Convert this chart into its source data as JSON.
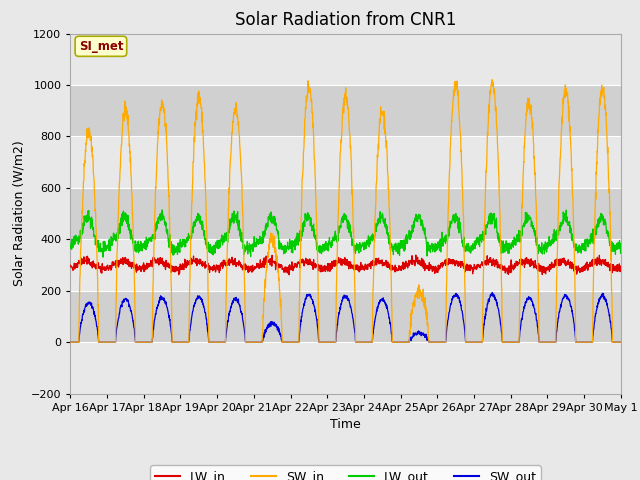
{
  "title": "Solar Radiation from CNR1",
  "xlabel": "Time",
  "ylabel": "Solar Radiation (W/m2)",
  "ylim": [
    -200,
    1200
  ],
  "x_tick_labels": [
    "Apr 16",
    "Apr 17",
    "Apr 18",
    "Apr 19",
    "Apr 20",
    "Apr 21",
    "Apr 22",
    "Apr 23",
    "Apr 24",
    "Apr 25",
    "Apr 26",
    "Apr 27",
    "Apr 28",
    "Apr 29",
    "Apr 30",
    "May 1"
  ],
  "yticks": [
    -200,
    0,
    200,
    400,
    600,
    800,
    1000,
    1200
  ],
  "legend_labels": [
    "LW_in",
    "SW_in",
    "LW_out",
    "SW_out"
  ],
  "line_colors": [
    "#dd0000",
    "#ffaa00",
    "#00cc00",
    "#0000dd"
  ],
  "annotation_text": "SI_met",
  "annotation_fg": "#8b0000",
  "annotation_bg": "#ffffcc",
  "annotation_edge": "#aaaa00",
  "fig_bg": "#e8e8e8",
  "plot_bg_light": "#e8e8e8",
  "plot_bg_dark": "#d0d0d0",
  "grid_color": "#ffffff",
  "title_fontsize": 12,
  "axis_label_fontsize": 9,
  "tick_fontsize": 8,
  "legend_fontsize": 9
}
